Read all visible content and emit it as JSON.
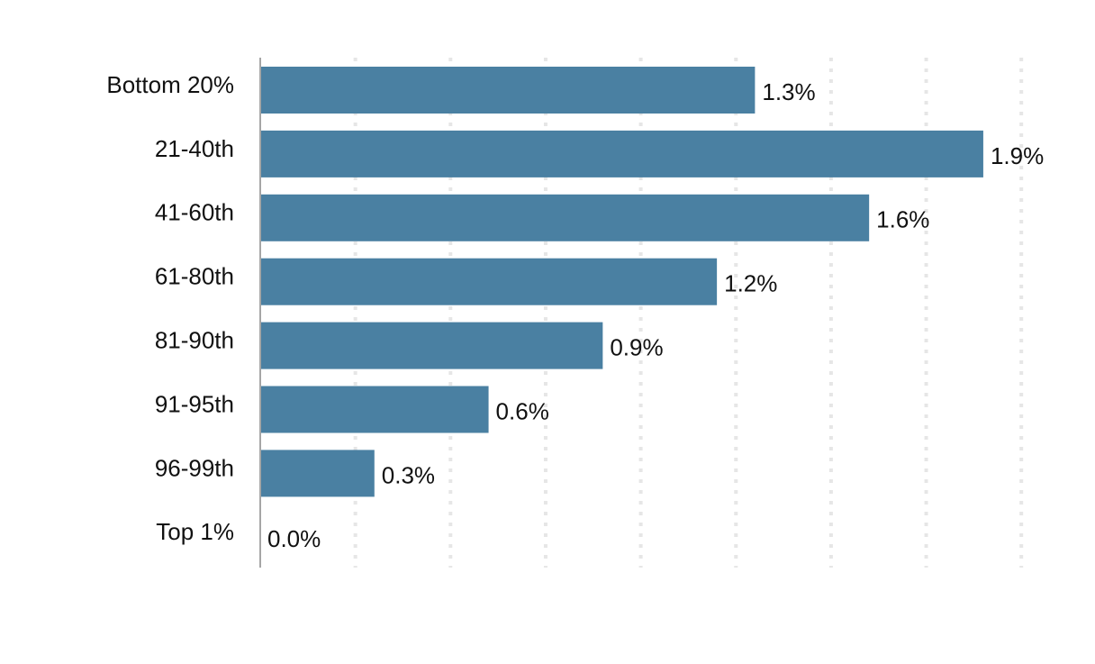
{
  "chart_data": {
    "type": "bar",
    "orientation": "horizontal",
    "categories": [
      "Bottom 20%",
      "21-40th",
      "41-60th",
      "61-80th",
      "81-90th",
      "91-95th",
      "96-99th",
      "Top 1%"
    ],
    "values": [
      1.3,
      1.9,
      1.6,
      1.2,
      0.9,
      0.6,
      0.3,
      0.0
    ],
    "value_labels": [
      "1.3%",
      "1.9%",
      "1.6%",
      "1.2%",
      "0.9%",
      "0.6%",
      "0.3%",
      "0.0%"
    ],
    "title": "",
    "xlabel": "",
    "ylabel": "",
    "xlim": [
      0,
      2.0
    ],
    "grid": true,
    "bar_color": "#4a80a2",
    "gridline_color": "#e6e6e6",
    "axis_color": "#a6a6a6",
    "text_color": "#111111"
  }
}
